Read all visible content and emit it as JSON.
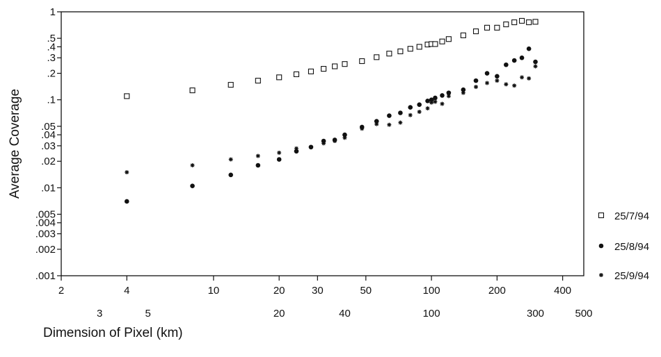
{
  "chart_data": {
    "type": "scatter",
    "title": "",
    "xlabel": "Dimension of Pixel (km)",
    "ylabel": "Average Coverage",
    "x_scale": "log",
    "y_scale": "log",
    "xlim": [
      2,
      500
    ],
    "ylim": [
      0.001,
      1
    ],
    "x_ticks_row1": [
      {
        "value": 2,
        "label": "2"
      },
      {
        "value": 4,
        "label": "4"
      },
      {
        "value": 10,
        "label": "10"
      },
      {
        "value": 20,
        "label": "20"
      },
      {
        "value": 30,
        "label": "30"
      },
      {
        "value": 50,
        "label": "50"
      },
      {
        "value": 100,
        "label": "100"
      },
      {
        "value": 200,
        "label": "200"
      },
      {
        "value": 400,
        "label": "400"
      }
    ],
    "x_ticks_row2": [
      {
        "value": 3,
        "label": "3"
      },
      {
        "value": 5,
        "label": "5"
      },
      {
        "value": 20,
        "label": "20"
      },
      {
        "value": 40,
        "label": "40"
      },
      {
        "value": 100,
        "label": "100"
      },
      {
        "value": 300,
        "label": "300"
      },
      {
        "value": 500,
        "label": "500"
      }
    ],
    "y_ticks": [
      {
        "value": 1,
        "label": "1"
      },
      {
        "value": 0.5,
        "label": ".5"
      },
      {
        "value": 0.4,
        "label": ".4"
      },
      {
        "value": 0.3,
        "label": ".3"
      },
      {
        "value": 0.2,
        "label": ".2"
      },
      {
        "value": 0.1,
        "label": ".1"
      },
      {
        "value": 0.05,
        "label": ".05"
      },
      {
        "value": 0.04,
        "label": ".04"
      },
      {
        "value": 0.03,
        "label": ".03"
      },
      {
        "value": 0.02,
        "label": ".02"
      },
      {
        "value": 0.01,
        "label": ".01"
      },
      {
        "value": 0.005,
        "label": ".005"
      },
      {
        "value": 0.004,
        "label": ".004"
      },
      {
        "value": 0.003,
        "label": ".003"
      },
      {
        "value": 0.002,
        "label": ".002"
      },
      {
        "value": 0.001,
        "label": ".001"
      }
    ],
    "legend_position": "right",
    "series": [
      {
        "name": "25/7/94",
        "marker": "open-square",
        "x": [
          4,
          8,
          12,
          16,
          20,
          24,
          28,
          32,
          36,
          40,
          48,
          56,
          64,
          72,
          80,
          88,
          96,
          100,
          104,
          112,
          120,
          140,
          160,
          180,
          200,
          220,
          240,
          260,
          280,
          300
        ],
        "y": [
          0.11,
          0.128,
          0.148,
          0.165,
          0.18,
          0.195,
          0.21,
          0.225,
          0.24,
          0.255,
          0.275,
          0.305,
          0.335,
          0.355,
          0.38,
          0.4,
          0.425,
          0.43,
          0.43,
          0.46,
          0.49,
          0.54,
          0.6,
          0.66,
          0.66,
          0.72,
          0.76,
          0.79,
          0.76,
          0.77
        ]
      },
      {
        "name": "25/8/94",
        "marker": "filled-circle",
        "x": [
          4,
          8,
          12,
          16,
          20,
          24,
          28,
          32,
          36,
          40,
          48,
          56,
          64,
          72,
          80,
          88,
          96,
          100,
          104,
          112,
          120,
          140,
          160,
          180,
          200,
          220,
          240,
          260,
          280,
          300
        ],
        "y": [
          0.007,
          0.0105,
          0.014,
          0.018,
          0.021,
          0.026,
          0.029,
          0.034,
          0.035,
          0.04,
          0.049,
          0.057,
          0.066,
          0.071,
          0.082,
          0.088,
          0.097,
          0.1,
          0.105,
          0.112,
          0.12,
          0.13,
          0.165,
          0.2,
          0.185,
          0.25,
          0.28,
          0.3,
          0.38,
          0.27
        ]
      },
      {
        "name": "25/9/94",
        "marker": "star",
        "x": [
          4,
          8,
          12,
          16,
          20,
          24,
          28,
          32,
          36,
          40,
          48,
          56,
          64,
          72,
          80,
          88,
          96,
          100,
          104,
          112,
          120,
          140,
          160,
          180,
          200,
          220,
          240,
          260,
          280,
          300
        ],
        "y": [
          0.015,
          0.018,
          0.021,
          0.023,
          0.025,
          0.028,
          0.029,
          0.032,
          0.034,
          0.037,
          0.047,
          0.053,
          0.052,
          0.055,
          0.067,
          0.073,
          0.08,
          0.093,
          0.095,
          0.09,
          0.11,
          0.12,
          0.14,
          0.155,
          0.165,
          0.15,
          0.145,
          0.18,
          0.175,
          0.24
        ]
      }
    ]
  }
}
